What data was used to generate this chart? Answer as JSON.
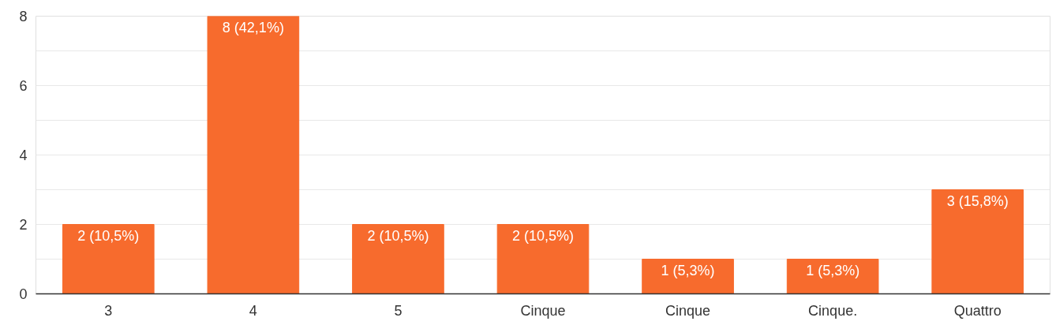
{
  "chart_data": {
    "type": "bar",
    "categories": [
      "3",
      "4",
      "5",
      "Cinque",
      "Cinque",
      "Cinque.",
      "Quattro"
    ],
    "values": [
      2,
      8,
      2,
      2,
      1,
      1,
      3
    ],
    "value_labels": [
      "2 (10,5%)",
      "8 (42,1%)",
      "2 (10,5%)",
      "2 (10,5%)",
      "1 (5,3%)",
      "1 (5,3%)",
      "3 (15,8%)"
    ],
    "color": "#f76b2d",
    "ylim": [
      0,
      8
    ],
    "yticks": [
      0,
      {
        "value": 1,
        "label": null
      },
      2,
      {
        "value": 3,
        "label": null
      },
      4,
      {
        "value": 5,
        "label": null
      },
      6,
      {
        "value": 7,
        "label": null
      },
      8
    ],
    "grid": "y"
  }
}
